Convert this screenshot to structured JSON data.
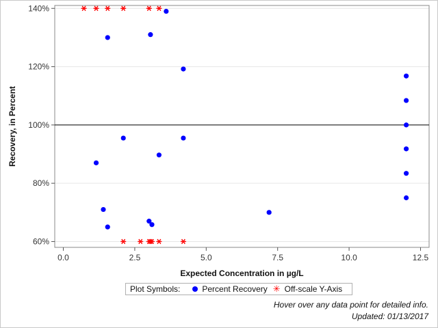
{
  "chart_data": {
    "type": "scatter",
    "title": "",
    "xlabel": "Expected Concentration in µg/L",
    "ylabel": "Recovery, in Percent",
    "xlim": [
      -0.3,
      12.8
    ],
    "ylim": [
      58,
      141
    ],
    "x_ticks": [
      0.0,
      2.5,
      5.0,
      7.5,
      10.0,
      12.5
    ],
    "x_tick_labels": [
      "0.0",
      "2.5",
      "5.0",
      "7.5",
      "10.0",
      "12.5"
    ],
    "y_ticks": [
      60,
      80,
      100,
      120,
      140
    ],
    "y_tick_labels": [
      "60%",
      "80%",
      "100%",
      "120%",
      "140%"
    ],
    "reference_line": 100,
    "grid": true,
    "legend_position": "bottom",
    "legend_title": "Plot Symbols:",
    "series": [
      {
        "name": "Percent Recovery",
        "color": "#0000ff",
        "marker": "circle",
        "points": [
          [
            1.15,
            87
          ],
          [
            1.4,
            71
          ],
          [
            1.55,
            130
          ],
          [
            1.55,
            65
          ],
          [
            2.1,
            95.5
          ],
          [
            3.0,
            67
          ],
          [
            3.05,
            131
          ],
          [
            3.1,
            65.8
          ],
          [
            3.35,
            89.7
          ],
          [
            3.6,
            139
          ],
          [
            4.2,
            119.2
          ],
          [
            4.2,
            95.5
          ],
          [
            7.2,
            70
          ],
          [
            12.0,
            116.8
          ],
          [
            12.0,
            108.4
          ],
          [
            12.0,
            100
          ],
          [
            12.0,
            91.8
          ],
          [
            12.0,
            83.4
          ],
          [
            12.0,
            75
          ]
        ]
      },
      {
        "name": "Off-scale Y-Axis",
        "color": "#ff0000",
        "marker": "asterisk",
        "points": [
          [
            0.72,
            140
          ],
          [
            1.15,
            140
          ],
          [
            1.55,
            140
          ],
          [
            2.1,
            140
          ],
          [
            3.0,
            140
          ],
          [
            3.35,
            140
          ],
          [
            2.1,
            60
          ],
          [
            2.7,
            60
          ],
          [
            3.0,
            60
          ],
          [
            3.05,
            60
          ],
          [
            3.1,
            60
          ],
          [
            3.35,
            60
          ],
          [
            4.2,
            60
          ]
        ]
      }
    ]
  },
  "footnote": {
    "hover_text": "Hover over any data point for detailed info.",
    "updated_text": "Updated: 01/13/2017"
  }
}
